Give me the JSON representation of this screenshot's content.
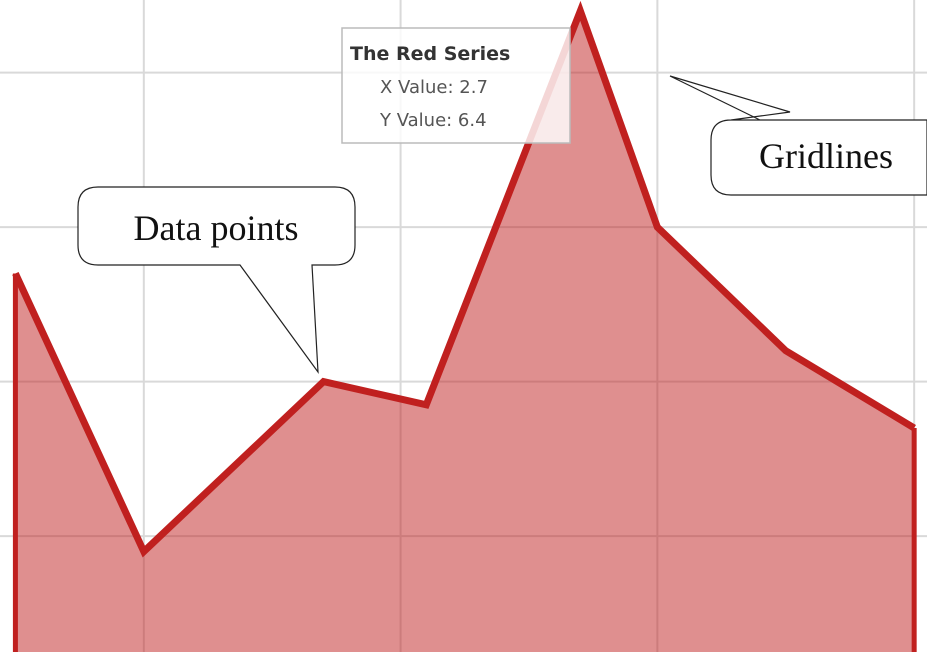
{
  "chart_data": {
    "type": "area",
    "x": [
      0.5,
      1.0,
      1.7,
      2.1,
      2.7,
      3.0,
      3.5,
      4.0
    ],
    "series": [
      {
        "name": "The Red Series",
        "color": "#c0201f",
        "values": [
          4.7,
          2.9,
          4.0,
          3.85,
          6.4,
          5.0,
          4.2,
          3.7
        ]
      }
    ],
    "xlim": [
      0.44,
      4.05
    ],
    "ylim": [
      2.25,
      6.47
    ],
    "xticks": [
      1,
      2,
      3,
      4
    ],
    "yticks": [
      3,
      4,
      5,
      6
    ],
    "grid": true,
    "tooltip": {
      "x_text": "X Value: 2.7",
      "y_text": "Y Value: 6.4"
    },
    "annotations": [
      "Data points",
      "Gridlines"
    ]
  }
}
